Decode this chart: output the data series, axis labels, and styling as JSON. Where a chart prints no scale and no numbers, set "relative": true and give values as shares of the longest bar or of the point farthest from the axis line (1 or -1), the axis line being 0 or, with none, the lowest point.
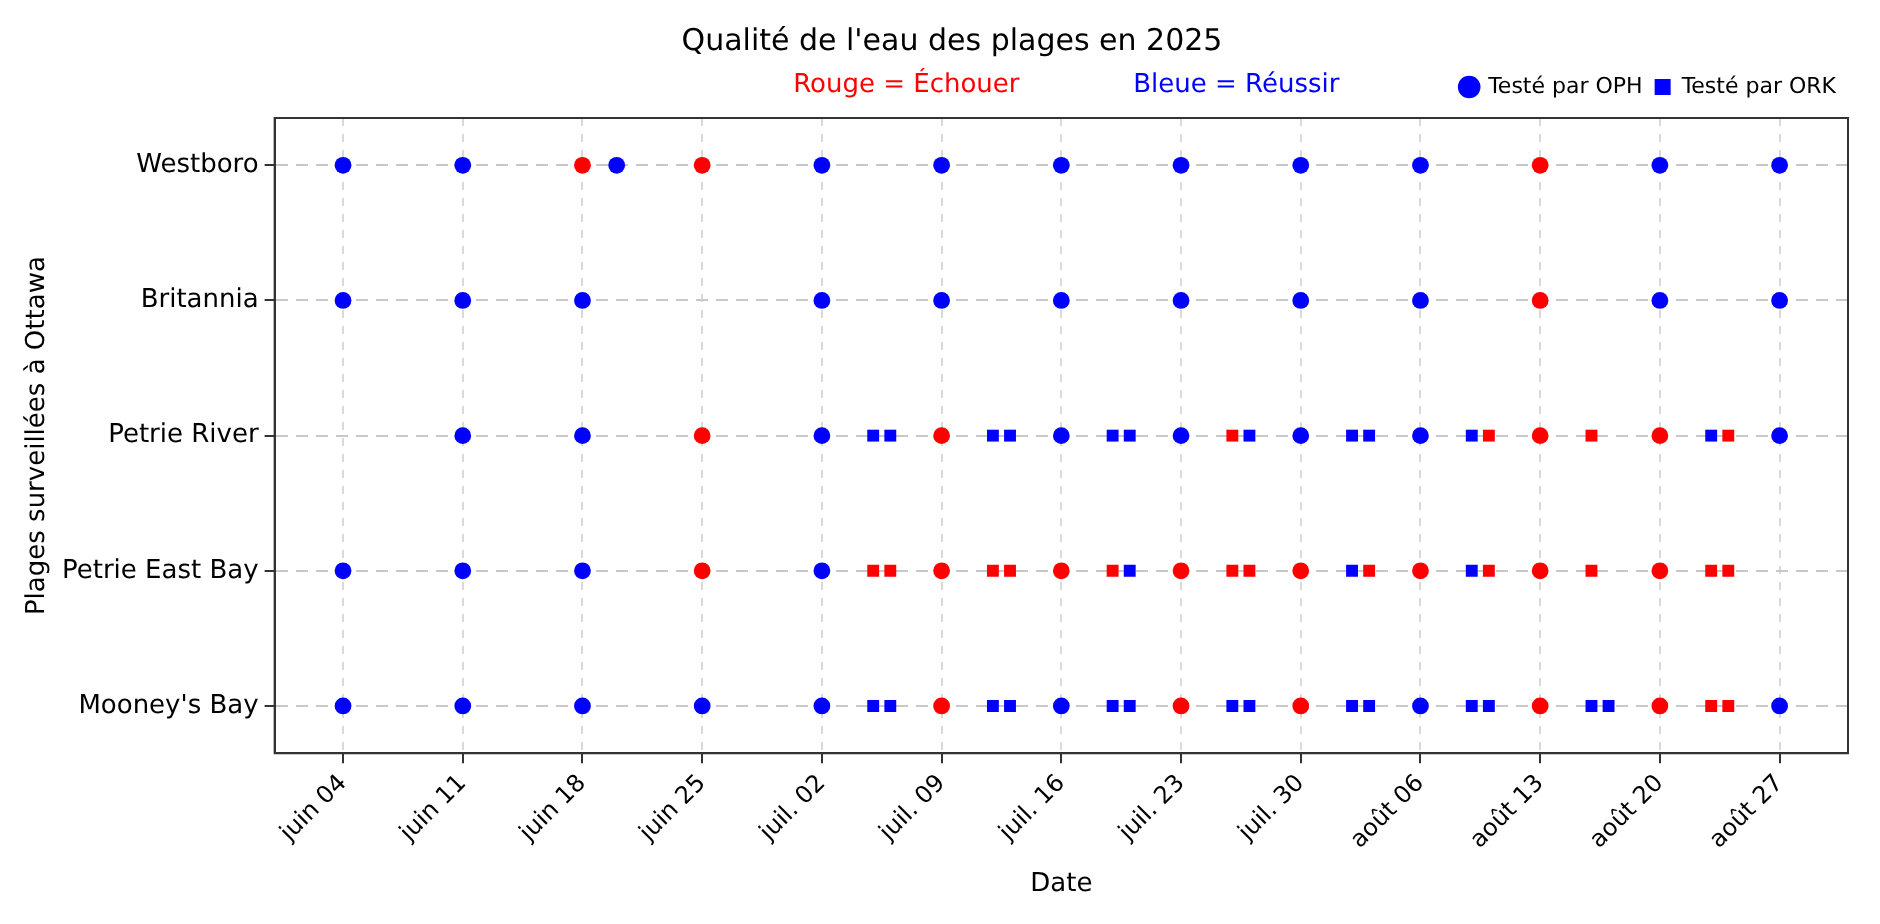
{
  "chart_data": {
    "type": "scatter",
    "title": "Qualité de l'eau des plages en 2025",
    "xlabel": "Date",
    "annotations": [
      "Rouge = Échouer",
      "Bleue = Réussir",
      "Plages surveillées à Ottawa"
    ],
    "relative": true,
    "y_categories": [
      "Westboro",
      "Britannia",
      "Petrie River",
      "Petrie East Bay",
      "Mooney's Bay"
    ],
    "xlim": [
      "2025-05-31",
      "2025-08-31"
    ],
    "xticks": [
      {
        "value": "2025-06-04",
        "label": "juin 04"
      },
      {
        "value": "2025-06-11",
        "label": "juin 11"
      },
      {
        "value": "2025-06-18",
        "label": "juin 18"
      },
      {
        "value": "2025-06-25",
        "label": "juin 25"
      },
      {
        "value": "2025-07-02",
        "label": "juil. 02"
      },
      {
        "value": "2025-07-09",
        "label": "juil. 09"
      },
      {
        "value": "2025-07-16",
        "label": "juil. 16"
      },
      {
        "value": "2025-07-23",
        "label": "juil. 23"
      },
      {
        "value": "2025-07-30",
        "label": "juil. 30"
      },
      {
        "value": "2025-08-06",
        "label": "août 06"
      },
      {
        "value": "2025-08-13",
        "label": "août 13"
      },
      {
        "value": "2025-08-20",
        "label": "août 20"
      },
      {
        "value": "2025-08-27",
        "label": "août 27"
      }
    ],
    "grid": true,
    "legend": "top right",
    "series": [
      {
        "color": "#ff0000",
        "marker": "circle",
        "x": [
          "2025-06-18",
          "2025-06-25",
          "2025-08-13",
          "2025-08-13",
          "2025-06-25",
          "2025-07-09",
          "2025-08-13",
          "2025-08-20",
          "2025-06-25",
          "2025-07-09",
          "2025-07-16",
          "2025-07-23",
          "2025-07-30",
          "2025-08-06",
          "2025-08-13",
          "2025-08-20",
          "2025-07-09",
          "2025-07-23",
          "2025-07-30",
          "2025-08-13",
          "2025-08-20"
        ],
        "values": [
          1,
          1,
          1,
          0.75,
          0.5,
          0.5,
          0.5,
          0.5,
          0.25,
          0.25,
          0.25,
          0.25,
          0.25,
          0.25,
          0.25,
          0.25,
          0,
          0,
          0,
          0,
          0
        ]
      },
      {
        "name": "Testé par OPH",
        "color": "#0000ff",
        "marker": "circle",
        "x": [
          "2025-06-04",
          "2025-06-11",
          "2025-06-20",
          "2025-07-02",
          "2025-07-09",
          "2025-07-16",
          "2025-07-23",
          "2025-07-30",
          "2025-08-06",
          "2025-08-20",
          "2025-08-27",
          "2025-06-04",
          "2025-06-11",
          "2025-06-18",
          "2025-07-02",
          "2025-07-09",
          "2025-07-16",
          "2025-07-23",
          "2025-07-30",
          "2025-08-06",
          "2025-08-20",
          "2025-08-27",
          "2025-06-11",
          "2025-06-18",
          "2025-07-02",
          "2025-07-16",
          "2025-07-23",
          "2025-07-30",
          "2025-08-06",
          "2025-08-27",
          "2025-06-04",
          "2025-06-11",
          "2025-06-18",
          "2025-07-02",
          "2025-06-04",
          "2025-06-11",
          "2025-06-18",
          "2025-06-25",
          "2025-07-02",
          "2025-07-16",
          "2025-08-06",
          "2025-08-27"
        ],
        "values": [
          1,
          1,
          1,
          1,
          1,
          1,
          1,
          1,
          1,
          1,
          1,
          0.75,
          0.75,
          0.75,
          0.75,
          0.75,
          0.75,
          0.75,
          0.75,
          0.75,
          0.75,
          0.75,
          0.5,
          0.5,
          0.5,
          0.5,
          0.5,
          0.5,
          0.5,
          0.5,
          0.25,
          0.25,
          0.25,
          0.25,
          0,
          0,
          0,
          0,
          0,
          0,
          0,
          0
        ]
      },
      {
        "color": "#ff0000",
        "marker": "square",
        "x": [
          "2025-07-26",
          "2025-08-10",
          "2025-08-16",
          "2025-08-24",
          "2025-07-05",
          "2025-07-06",
          "2025-07-12",
          "2025-07-13",
          "2025-07-19",
          "2025-07-26",
          "2025-07-27",
          "2025-08-03",
          "2025-08-10",
          "2025-08-16",
          "2025-08-23",
          "2025-08-24",
          "2025-08-23",
          "2025-08-24"
        ],
        "values": [
          0.5,
          0.5,
          0.5,
          0.5,
          0.25,
          0.25,
          0.25,
          0.25,
          0.25,
          0.25,
          0.25,
          0.25,
          0.25,
          0.25,
          0.25,
          0.25,
          0,
          0
        ]
      },
      {
        "name": "Testé par ORK",
        "color": "#0000ff",
        "marker": "square",
        "x": [
          "2025-07-05",
          "2025-07-06",
          "2025-07-12",
          "2025-07-13",
          "2025-07-19",
          "2025-07-20",
          "2025-07-27",
          "2025-08-02",
          "2025-08-03",
          "2025-08-09",
          "2025-08-23",
          "2025-07-20",
          "2025-08-02",
          "2025-08-09",
          "2025-07-05",
          "2025-07-06",
          "2025-07-12",
          "2025-07-13",
          "2025-07-19",
          "2025-07-20",
          "2025-07-26",
          "2025-07-27",
          "2025-08-02",
          "2025-08-03",
          "2025-08-09",
          "2025-08-10",
          "2025-08-16",
          "2025-08-17"
        ],
        "values": [
          0.5,
          0.5,
          0.5,
          0.5,
          0.5,
          0.5,
          0.5,
          0.5,
          0.5,
          0.5,
          0.5,
          0.25,
          0.25,
          0.25,
          0,
          0,
          0,
          0,
          0,
          0,
          0,
          0,
          0,
          0,
          0,
          0,
          0,
          0
        ]
      }
    ]
  }
}
